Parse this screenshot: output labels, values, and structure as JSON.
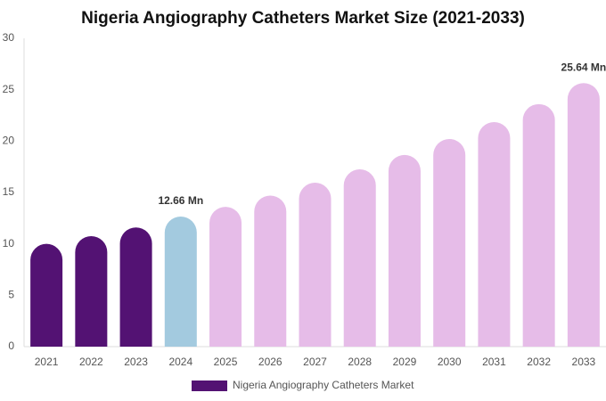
{
  "chart_data": {
    "type": "bar",
    "title": "Nigeria Angiography Catheters Market Size (2021-2033)",
    "categories": [
      "2021",
      "2022",
      "2023",
      "2024",
      "2025",
      "2026",
      "2027",
      "2028",
      "2029",
      "2030",
      "2031",
      "2032",
      "2033"
    ],
    "series": [
      {
        "name": "Nigeria Angiography Catheters Market",
        "color": "#531273",
        "colors": [
          "#531273",
          "#531273",
          "#531273",
          "#a3cadf",
          "#e6bce8",
          "#e6bce8",
          "#e6bce8",
          "#e6bce8",
          "#e6bce8",
          "#e6bce8",
          "#e6bce8",
          "#e6bce8",
          "#e6bce8"
        ],
        "values": [
          10.0,
          10.75,
          11.6,
          12.66,
          13.6,
          14.7,
          15.95,
          17.25,
          18.65,
          20.2,
          21.85,
          23.6,
          25.64
        ],
        "value_labels": [
          null,
          null,
          null,
          "12.66 Mn",
          null,
          null,
          null,
          null,
          null,
          null,
          null,
          null,
          "25.64 Mn"
        ]
      }
    ],
    "ylim": [
      0,
      30
    ],
    "yticks": [
      0,
      5,
      10,
      15,
      20,
      25,
      30
    ],
    "grid": false
  }
}
